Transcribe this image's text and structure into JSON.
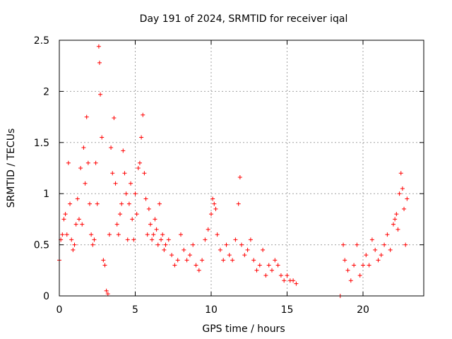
{
  "chart_data": {
    "type": "scatter",
    "title": "Day 191 of 2024, SRMTID for receiver iqal",
    "xlabel": "GPS time / hours",
    "ylabel": "SRMTID / TECUs",
    "xlim": [
      0,
      24
    ],
    "ylim": [
      0,
      2.5
    ],
    "xticks": [
      0,
      5,
      10,
      15,
      20
    ],
    "yticks": [
      0,
      0.5,
      1,
      1.5,
      2,
      2.5
    ],
    "xtick_labels": [
      "0",
      "5",
      "10",
      "15",
      "20"
    ],
    "ytick_labels": [
      "0",
      "0.5",
      "1",
      "1.5",
      "2",
      "2.5"
    ],
    "grid": true,
    "marker": "+",
    "color": "#ff0000",
    "series": [
      {
        "name": "SRMTID",
        "x": [
          0.0,
          0.1,
          0.2,
          0.3,
          0.4,
          0.5,
          0.6,
          0.7,
          0.8,
          0.9,
          1.0,
          1.1,
          1.2,
          1.3,
          1.4,
          1.5,
          1.6,
          1.7,
          1.8,
          1.9,
          2.0,
          2.1,
          2.2,
          2.3,
          2.4,
          2.5,
          2.6,
          2.65,
          2.7,
          2.8,
          2.9,
          3.0,
          3.1,
          3.2,
          3.3,
          3.4,
          3.5,
          3.6,
          3.7,
          3.8,
          3.9,
          4.0,
          4.1,
          4.2,
          4.3,
          4.4,
          4.5,
          4.6,
          4.7,
          4.8,
          4.9,
          5.0,
          5.1,
          5.2,
          5.3,
          5.4,
          5.5,
          5.6,
          5.7,
          5.8,
          5.9,
          6.0,
          6.1,
          6.2,
          6.3,
          6.4,
          6.5,
          6.6,
          6.7,
          6.8,
          6.9,
          7.0,
          7.2,
          7.4,
          7.6,
          7.8,
          8.0,
          8.2,
          8.4,
          8.6,
          8.8,
          9.0,
          9.2,
          9.4,
          9.6,
          9.8,
          10.0,
          10.1,
          10.2,
          10.3,
          10.4,
          10.6,
          10.8,
          11.0,
          11.2,
          11.4,
          11.6,
          11.8,
          11.9,
          12.0,
          12.2,
          12.4,
          12.6,
          12.8,
          13.0,
          13.2,
          13.4,
          13.6,
          13.8,
          14.0,
          14.2,
          14.4,
          14.6,
          14.8,
          15.0,
          15.2,
          15.4,
          15.6,
          18.5,
          18.7,
          18.8,
          19.0,
          19.2,
          19.4,
          19.6,
          19.8,
          20.0,
          20.2,
          20.4,
          20.6,
          20.8,
          21.0,
          21.2,
          21.4,
          21.6,
          21.8,
          22.0,
          22.1,
          22.2,
          22.3,
          22.4,
          22.5,
          22.6,
          22.7,
          22.8,
          22.9
        ],
        "y": [
          0.35,
          0.55,
          0.6,
          0.75,
          0.8,
          0.6,
          1.3,
          0.9,
          0.55,
          0.45,
          0.5,
          0.7,
          0.95,
          0.75,
          1.25,
          0.7,
          1.45,
          1.1,
          1.75,
          1.3,
          0.9,
          0.6,
          0.5,
          0.55,
          1.3,
          0.9,
          2.44,
          2.28,
          1.97,
          1.55,
          0.35,
          0.3,
          0.05,
          0.02,
          0.6,
          1.45,
          1.2,
          1.74,
          1.1,
          0.7,
          0.6,
          0.8,
          0.9,
          1.42,
          1.2,
          1.0,
          0.55,
          0.9,
          1.1,
          0.75,
          0.55,
          1.0,
          0.8,
          1.25,
          1.3,
          1.55,
          1.77,
          1.2,
          0.95,
          0.6,
          0.85,
          0.7,
          0.55,
          0.6,
          0.75,
          0.65,
          0.5,
          0.9,
          0.55,
          0.6,
          0.45,
          0.5,
          0.55,
          0.4,
          0.3,
          0.35,
          0.6,
          0.45,
          0.35,
          0.4,
          0.5,
          0.3,
          0.25,
          0.35,
          0.55,
          0.65,
          0.8,
          0.95,
          0.9,
          0.85,
          0.6,
          0.45,
          0.35,
          0.5,
          0.4,
          0.35,
          0.55,
          0.9,
          1.16,
          0.5,
          0.4,
          0.45,
          0.55,
          0.35,
          0.25,
          0.3,
          0.45,
          0.2,
          0.3,
          0.25,
          0.35,
          0.3,
          0.2,
          0.15,
          0.2,
          0.15,
          0.15,
          0.12,
          0.0,
          0.5,
          0.35,
          0.25,
          0.15,
          0.3,
          0.5,
          0.2,
          0.3,
          0.4,
          0.3,
          0.55,
          0.45,
          0.35,
          0.4,
          0.5,
          0.6,
          0.45,
          0.7,
          0.75,
          0.8,
          0.65,
          1.0,
          1.2,
          1.05,
          0.85,
          0.5,
          0.95
        ]
      }
    ]
  }
}
